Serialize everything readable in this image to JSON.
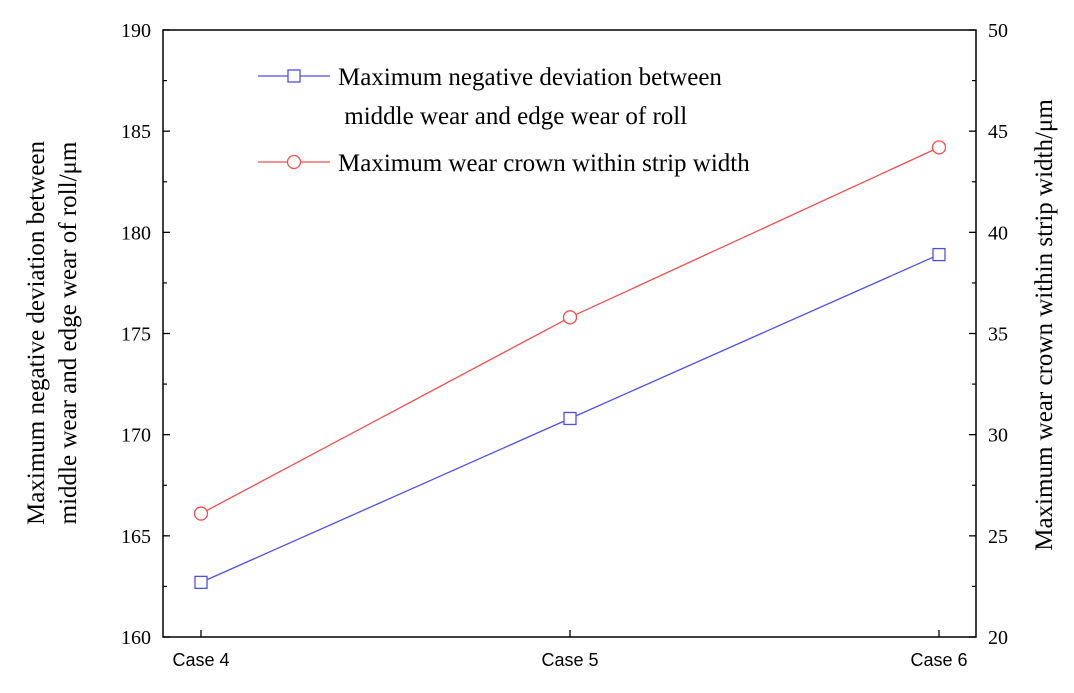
{
  "chart_data": {
    "type": "line",
    "categories": [
      "Case 4",
      "Case 5",
      "Case 6"
    ],
    "left_axis": {
      "title_lines": [
        "Maximum negative deviation between",
        "middle wear and edge wear of roll/μm"
      ],
      "ylim": [
        160,
        190
      ],
      "ticks": [
        "160",
        "165",
        "170",
        "175",
        "180",
        "185",
        "190"
      ]
    },
    "right_axis": {
      "title": "Maximum wear crown within strip width/μm",
      "ylim": [
        20,
        50
      ],
      "ticks": [
        "20",
        "25",
        "30",
        "35",
        "40",
        "45",
        "50"
      ]
    },
    "series": [
      {
        "name": "Maximum negative deviation between middle wear and edge wear of roll",
        "legend_lines": [
          "Maximum negative deviation between",
          " middle wear and edge wear of roll"
        ],
        "axis": "left",
        "marker": "square",
        "color": "#5050e8",
        "values": [
          162.7,
          170.8,
          178.9
        ]
      },
      {
        "name": "Maximum wear crown within strip width",
        "legend_lines": [
          "Maximum wear crown within strip width"
        ],
        "axis": "right",
        "marker": "circle",
        "color": "#f05050",
        "values": [
          26.1,
          35.8,
          44.2
        ]
      }
    ],
    "legend_position": "top-center",
    "grid": false
  }
}
